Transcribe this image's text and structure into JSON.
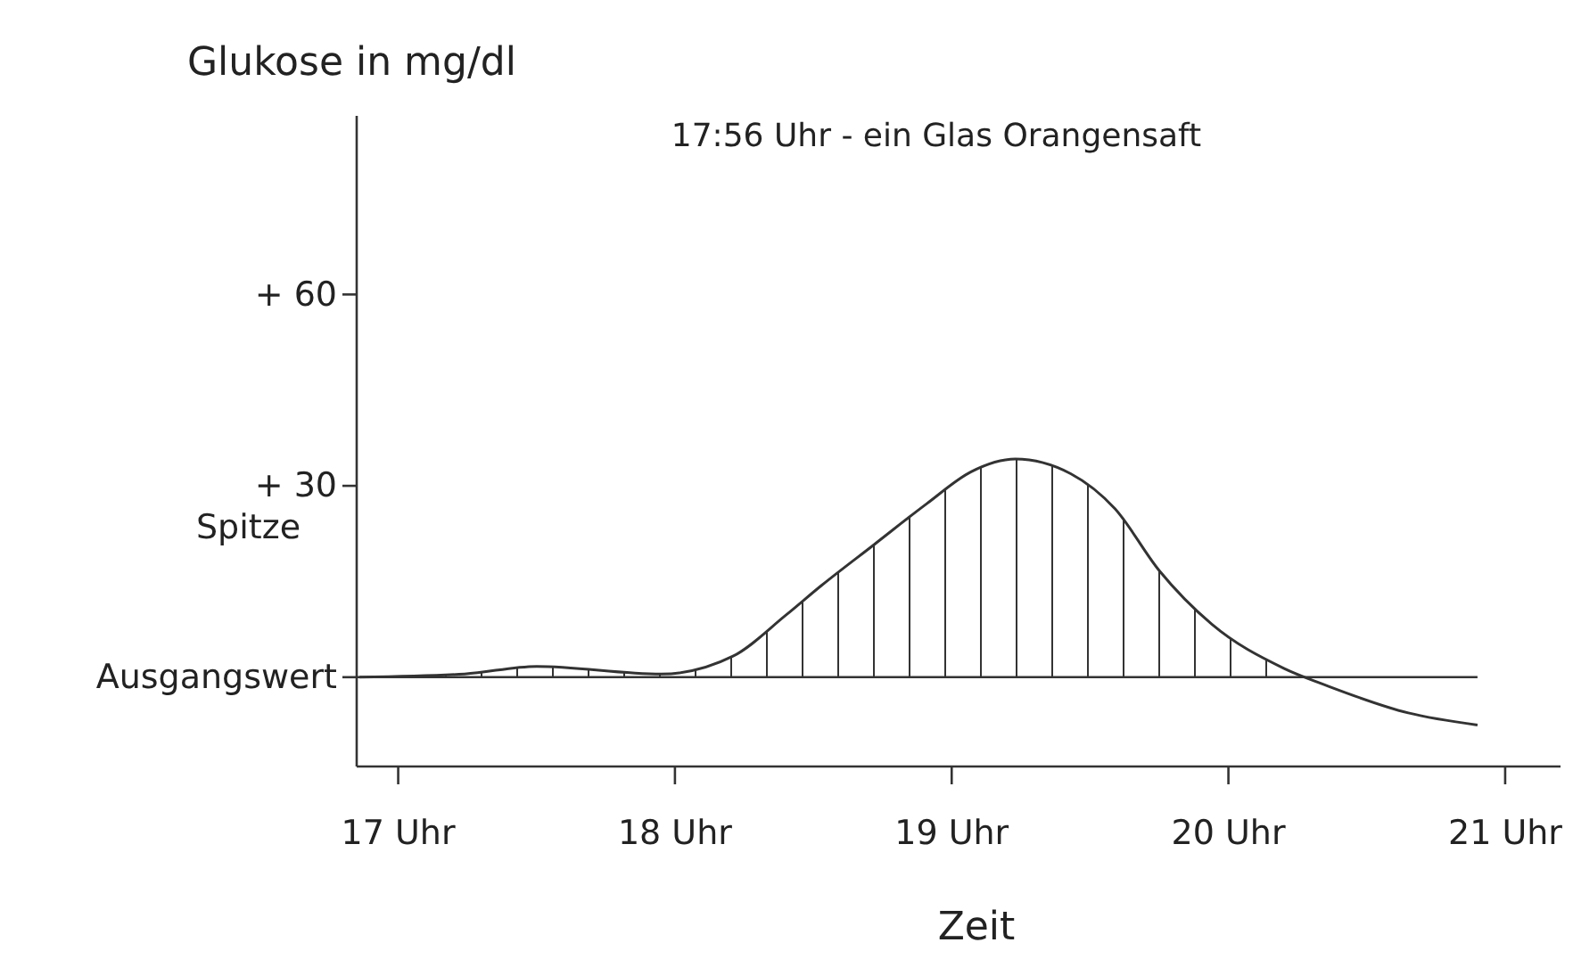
{
  "chart_data": {
    "type": "area",
    "ylabel": "Glukose in mg/dl",
    "xlabel": "Zeit",
    "annotations": [
      "17:56 Uhr - ein Glas Orangensaft",
      "Spitze"
    ],
    "x": [
      16.86,
      17.24,
      17.5,
      17.95,
      18.21,
      18.4,
      18.53,
      18.72,
      18.91,
      19.07,
      19.23,
      19.43,
      19.59,
      19.75,
      19.94,
      20.2,
      20.36,
      20.65,
      20.9
    ],
    "series": [
      {
        "color": "#333333",
        "values": [
          0,
          0.5,
          1.7,
          0.5,
          3.3,
          9.7,
          14.4,
          20.8,
          27.2,
          32.2,
          34.2,
          31.9,
          26.4,
          16.7,
          8.3,
          1.4,
          -1.4,
          -5.6,
          -7.5
        ]
      }
    ],
    "xlim": [
      16.85,
      21.2
    ],
    "xticks": [
      {
        "value": 17,
        "label": "17 Uhr"
      },
      {
        "value": 18,
        "label": "18 Uhr"
      },
      {
        "value": 19,
        "label": "19 Uhr"
      },
      {
        "value": 20,
        "label": "20 Uhr"
      },
      {
        "value": 21,
        "label": "21 Uhr"
      }
    ],
    "ylim": [
      -14,
      88
    ],
    "yticks": [
      {
        "value": 0,
        "label": "Ausgangswert"
      },
      {
        "value": 30,
        "label": "+ 30"
      },
      {
        "value": 60,
        "label": "+ 60"
      }
    ],
    "ref_lines": [
      {
        "axis": "y",
        "value": 0,
        "color": "#333333"
      }
    ],
    "grid": false
  }
}
